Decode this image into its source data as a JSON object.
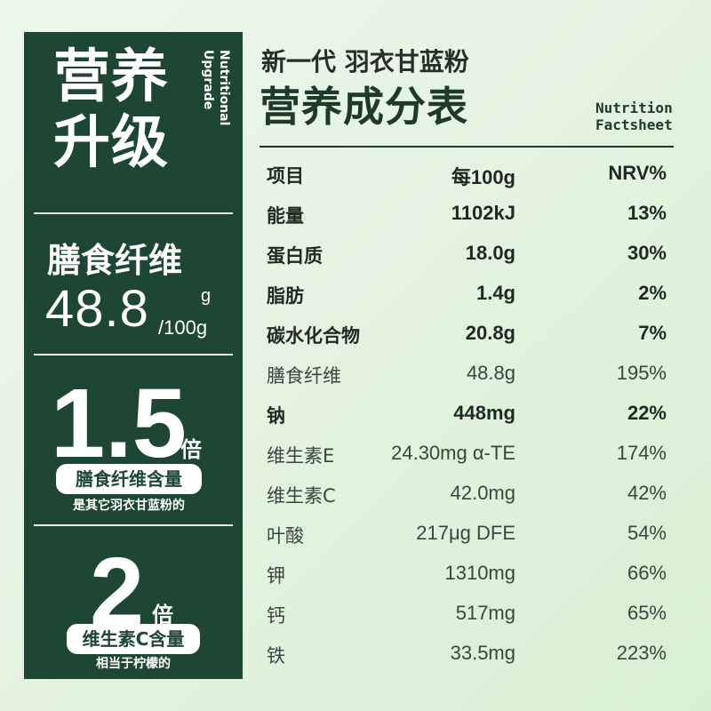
{
  "panel": {
    "hero_title_line1": "营养",
    "hero_title_line2": "升级",
    "hero_sub_line1": "Nutritional",
    "hero_sub_line2": "Upgrade",
    "fiber_label": "膳食纤维",
    "fiber_value": "48.8",
    "fiber_unit_top": "g",
    "fiber_unit_bottom": "/100g",
    "stat1": {
      "number": "1.5",
      "times": "倍",
      "pill": "膳食纤维含量",
      "note": "是其它羽衣甘蓝粉的"
    },
    "stat2": {
      "number": "2",
      "times": "倍",
      "pill": "维生素C含量",
      "note": "相当于柠檬的"
    }
  },
  "header": {
    "product": "新一代 羽衣甘蓝粉",
    "title": "营养成分表",
    "factsheet_line1": "Nutrition",
    "factsheet_line2": "Factsheet"
  },
  "table": {
    "headers": [
      "项目",
      "每100g",
      "NRV%"
    ],
    "rows": [
      {
        "item": "能量",
        "amount": "1102kJ",
        "nrv": "13%",
        "bold": true
      },
      {
        "item": "蛋白质",
        "amount": "18.0g",
        "nrv": "30%",
        "bold": true
      },
      {
        "item": "脂肪",
        "amount": "1.4g",
        "nrv": "2%",
        "bold": true
      },
      {
        "item": "碳水化合物",
        "amount": "20.8g",
        "nrv": "7%",
        "bold": true
      },
      {
        "item": "膳食纤维",
        "amount": "48.8g",
        "nrv": "195%",
        "bold": false
      },
      {
        "item": "钠",
        "amount": "448mg",
        "nrv": "22%",
        "bold": true
      },
      {
        "item": "维生素E",
        "amount": "24.30mg α-TE",
        "nrv": "174%",
        "bold": false
      },
      {
        "item": "维生素C",
        "amount": "42.0mg",
        "nrv": "42%",
        "bold": false
      },
      {
        "item": "叶酸",
        "amount": "217μg DFE",
        "nrv": "54%",
        "bold": false
      },
      {
        "item": "钾",
        "amount": "1310mg",
        "nrv": "66%",
        "bold": false
      },
      {
        "item": "钙",
        "amount": "517mg",
        "nrv": "65%",
        "bold": false
      },
      {
        "item": "铁",
        "amount": "33.5mg",
        "nrv": "223%",
        "bold": false
      }
    ]
  },
  "colors": {
    "panel": "#1e4634",
    "accent_text": "#1e3a2b",
    "background": "#e6f4e3"
  }
}
